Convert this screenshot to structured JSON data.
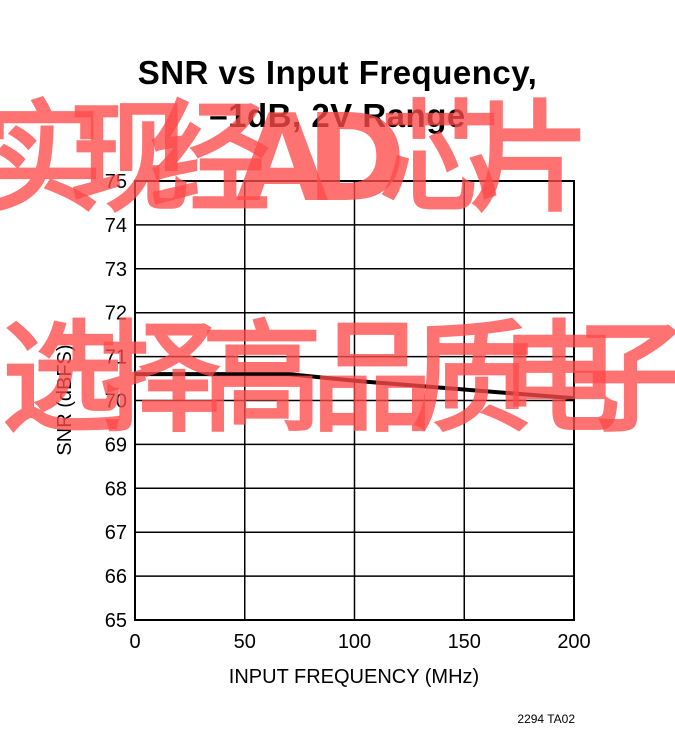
{
  "title_line1": "SNR vs Input Frequency,",
  "title_line2": "–1dB, 2V Range",
  "figure_id": "2294 TA02",
  "watermark": {
    "text": "实现经AD芯片选择高品质电子",
    "color": "#ff4a4a"
  },
  "chart_data": {
    "type": "line",
    "title": "SNR vs Input Frequency, –1dB, 2V Range",
    "xlabel": "INPUT FREQUENCY (MHz)",
    "ylabel": "SNR (dBFS)",
    "xlim": [
      0,
      200
    ],
    "ylim": [
      65,
      75
    ],
    "xticks": [
      0,
      50,
      100,
      150,
      200
    ],
    "yticks": [
      65,
      66,
      67,
      68,
      69,
      70,
      71,
      72,
      73,
      74,
      75
    ],
    "grid": true,
    "series": [
      {
        "x": [
          0,
          70,
          100,
          200
        ],
        "y": [
          70.6,
          70.6,
          70.45,
          70.05
        ]
      }
    ]
  }
}
